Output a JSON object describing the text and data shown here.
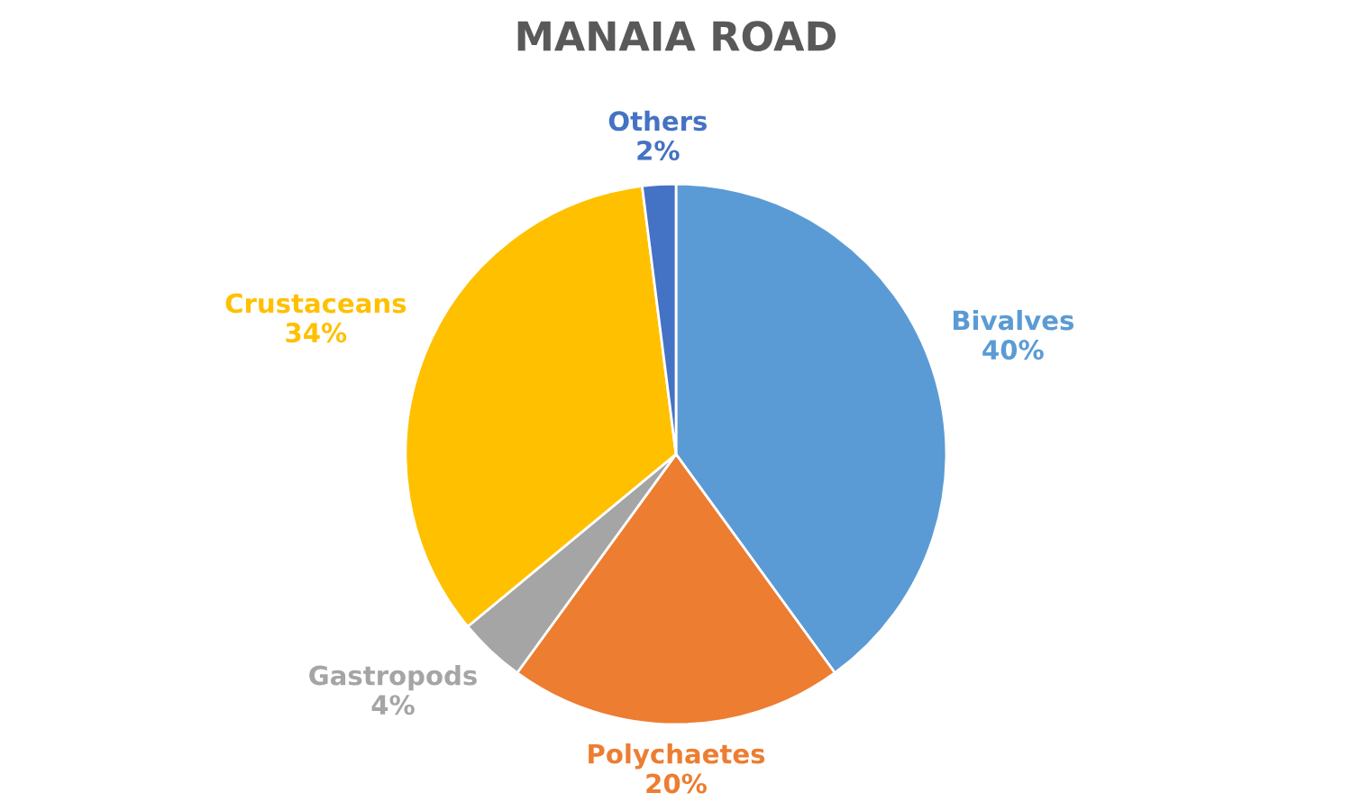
{
  "chart_data": {
    "type": "pie",
    "title": "MANAIA ROAD",
    "categories": [
      "Bivalves",
      "Polychaetes",
      "Gastropods",
      "Crustaceans",
      "Others"
    ],
    "values": [
      40,
      20,
      4,
      34,
      2
    ],
    "value_labels": [
      "40%",
      "20%",
      "4%",
      "34%",
      "2%"
    ],
    "colors": [
      "#5b9bd5",
      "#ed7d31",
      "#a5a5a5",
      "#ffc000",
      "#4472c4"
    ],
    "legend": false
  }
}
